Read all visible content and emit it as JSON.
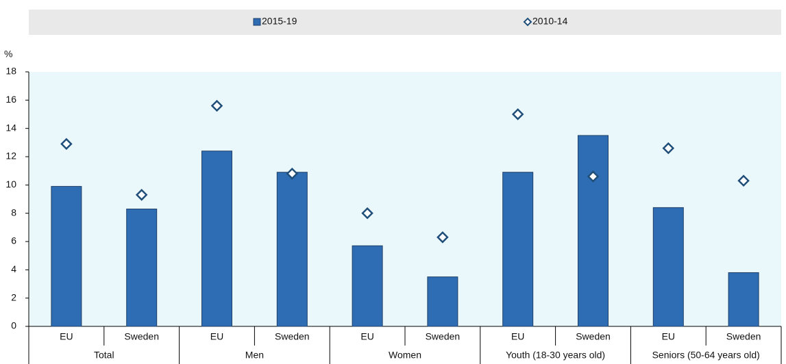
{
  "chart_data": {
    "type": "bar",
    "y_label": "%",
    "categories": [
      "EU",
      "Sweden",
      "EU",
      "Sweden",
      "EU",
      "Sweden",
      "EU",
      "Sweden",
      "EU",
      "Sweden"
    ],
    "groups": [
      "Total",
      "Men",
      "Women",
      "Youth (18-30 years old)",
      "Seniors (50-64 years old)"
    ],
    "series": [
      {
        "name": "2015-19",
        "color": "#2e6db4",
        "marker": "bar",
        "values": [
          9.9,
          8.3,
          12.4,
          10.9,
          5.7,
          3.5,
          10.9,
          13.5,
          8.4,
          3.8
        ]
      },
      {
        "name": "2010-14",
        "color": "#1f4e79",
        "marker": "diamond",
        "values": [
          12.9,
          9.3,
          15.6,
          10.8,
          8.0,
          6.3,
          15.0,
          10.6,
          12.6,
          10.3
        ]
      }
    ],
    "ylim": [
      0,
      18
    ],
    "yticks": [
      0,
      2,
      4,
      6,
      8,
      10,
      12,
      14,
      16,
      18
    ],
    "grid": false
  }
}
